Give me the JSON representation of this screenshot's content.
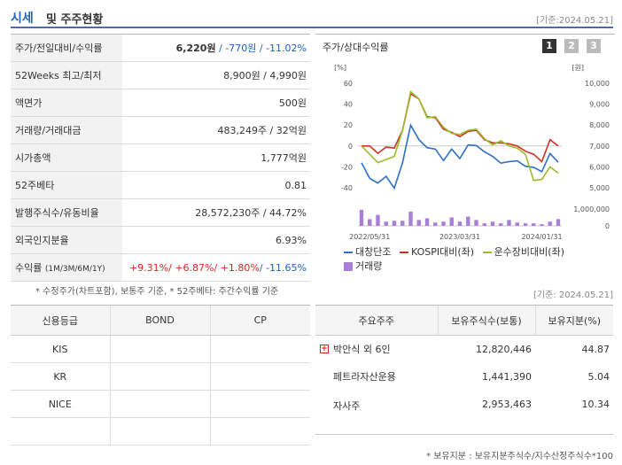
{
  "header": {
    "title_a": "시세",
    "title_b": "및 주주현황",
    "ref_date": "[기준:2024.05.21]"
  },
  "market": {
    "rows": [
      {
        "key": "주가/전일대비/수익률",
        "price": "6,220원",
        "change": " / -770원",
        "rate": " / -11.02%"
      },
      {
        "key": "52Weeks 최고/최저",
        "value": "8,900원 / 4,990원"
      },
      {
        "key": "액면가",
        "value": "500원"
      },
      {
        "key": "거래량/거래대금",
        "value": "483,249주 / 32억원"
      },
      {
        "key": "시가총액",
        "value": "1,777억원"
      },
      {
        "key": "52주베타",
        "value": "0.81"
      },
      {
        "key": "발행주식수/유동비율",
        "value": "28,572,230주 / 44.72%"
      },
      {
        "key": "외국인지분율",
        "value": "6.93%"
      },
      {
        "key": "수익률",
        "key_sub": "(1M/3M/6M/1Y)",
        "r1": "+9.31%",
        "r2": "+6.87%",
        "r3": "+1.80%",
        "r4": "-11.65%",
        "sep": "/ "
      }
    ],
    "note": "* 수정주가(차트포함), 보통주 기준, * 52주베타: 주간수익률 기준"
  },
  "chart_panel": {
    "title": "주가/상대수익률",
    "period_buttons": [
      "1",
      "2",
      "3"
    ],
    "legend": {
      "s1": "대창단조",
      "s2": "KOSPI대비(좌)",
      "s3": "운수장비대비(좌)",
      "vol": "거래량"
    }
  },
  "chart_data": {
    "type": "line",
    "left_unit": "[%]",
    "right_unit": "[원]",
    "y_left_ticks": [
      "60",
      "40",
      "20",
      "0",
      "-20",
      "-40"
    ],
    "y_left_range": [
      -40,
      60
    ],
    "y_right_ticks": [
      "10,000",
      "9,000",
      "8,000",
      "7,000",
      "6,000",
      "5,000"
    ],
    "y_right_range": [
      5000,
      10000
    ],
    "volume_ticks": [
      "1,000,000",
      "0"
    ],
    "volume_range": [
      0,
      1000000
    ],
    "x_ticks": [
      "2022/05/31",
      "2023/03/31",
      "2024/01/31"
    ],
    "x_tick_index": [
      1,
      12,
      22
    ],
    "series": [
      {
        "name": "대창단조",
        "color": "#2c6fc4",
        "axis": "right",
        "values": [
          6200,
          5450,
          5230,
          5550,
          4980,
          6200,
          8000,
          7300,
          6920,
          6850,
          6300,
          6850,
          6400,
          7050,
          7020,
          6720,
          6500,
          6180,
          6250,
          6290,
          6030,
          5980,
          5770,
          6640,
          6220
        ]
      },
      {
        "name": "KOSPI대비(좌)",
        "color": "#cc3322",
        "axis": "left",
        "values": [
          0,
          0,
          -7,
          -1,
          -2,
          15,
          50,
          45,
          28,
          27,
          16,
          13,
          9,
          14,
          15,
          6,
          3,
          3,
          2,
          0,
          -5,
          -8,
          -15,
          6,
          0
        ]
      },
      {
        "name": "운수장비대비(좌)",
        "color": "#9bbb2a",
        "axis": "left",
        "values": [
          0,
          -8,
          -16,
          -13,
          -10,
          15,
          52,
          45,
          27,
          28,
          18,
          12,
          11,
          15,
          16,
          7,
          1,
          5,
          0,
          -2,
          -8,
          -33,
          -32,
          -20,
          -26
        ]
      }
    ],
    "volume_name": "거래량",
    "volume_color": "#a97fd8",
    "volume": [
      950000,
      400000,
      650000,
      250000,
      300000,
      300000,
      850000,
      350000,
      450000,
      200000,
      250000,
      500000,
      250000,
      550000,
      350000,
      150000,
      250000,
      150000,
      350000,
      200000,
      150000,
      150000,
      100000,
      250000,
      400000
    ]
  },
  "credit": {
    "headers": [
      "신용등급",
      "BOND",
      "CP"
    ],
    "rows": [
      [
        "KIS",
        "",
        ""
      ],
      [
        "KR",
        "",
        ""
      ],
      [
        "NICE",
        "",
        ""
      ],
      [
        "",
        "",
        ""
      ]
    ]
  },
  "holders": {
    "headers": [
      "주요주주",
      "보유주식수(보통)",
      "보유지분(%)"
    ],
    "rows": [
      {
        "name": "박안식 외 6인",
        "shares": "12,820,446",
        "pct": "44.87",
        "expand": "+"
      },
      {
        "name": "페트라자산운용",
        "shares": "1,441,390",
        "pct": "5.04"
      },
      {
        "name": "자사주",
        "shares": "2,953,463",
        "pct": "10.34"
      }
    ],
    "ref_date": "[기준: 2024.05.21]",
    "note": "* 보유지분 : 보유지분주식수/지수산정주식수*100"
  }
}
